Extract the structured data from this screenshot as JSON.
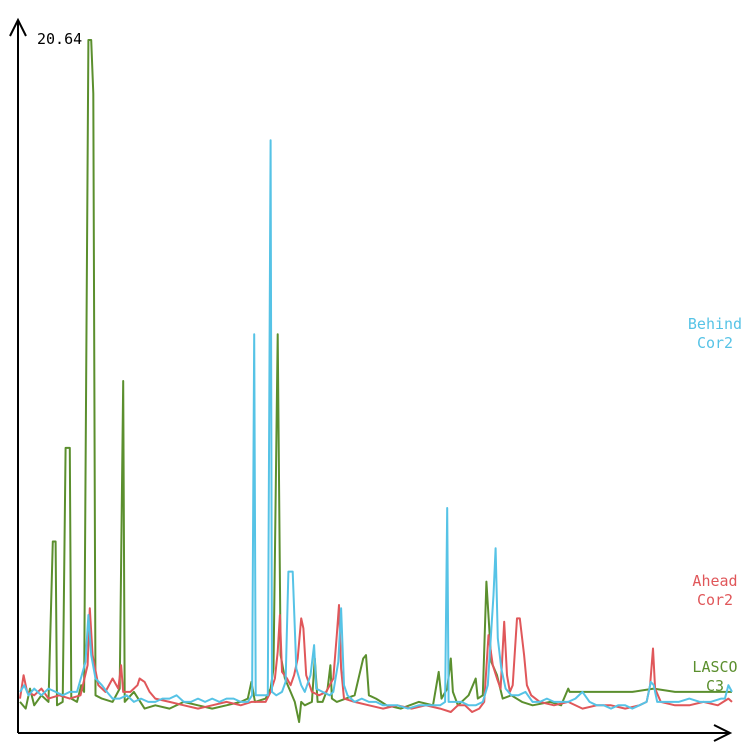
{
  "chart_data": {
    "type": "line",
    "title": "",
    "xlabel": "",
    "ylabel": "",
    "ymax_label": "20.64",
    "ylim": [
      0,
      20.64
    ],
    "xlim": [
      0,
      1000
    ],
    "grid": false,
    "legend": "right, labels next to series",
    "series": [
      {
        "name": "LASCO C3",
        "label_lines": [
          "LASCO",
          "C3"
        ],
        "color": "#5b8f2e",
        "points": [
          [
            0,
            0.6
          ],
          [
            8,
            0.4
          ],
          [
            14,
            1.0
          ],
          [
            20,
            0.5
          ],
          [
            30,
            0.8
          ],
          [
            40,
            0.6
          ],
          [
            46,
            5.4
          ],
          [
            50,
            5.4
          ],
          [
            52,
            0.5
          ],
          [
            60,
            0.6
          ],
          [
            64,
            8.2
          ],
          [
            70,
            8.2
          ],
          [
            72,
            0.7
          ],
          [
            80,
            0.6
          ],
          [
            86,
            1.1
          ],
          [
            90,
            0.9
          ],
          [
            96,
            20.4
          ],
          [
            100,
            20.4
          ],
          [
            103,
            18.8
          ],
          [
            106,
            0.8
          ],
          [
            115,
            0.7
          ],
          [
            130,
            0.6
          ],
          [
            140,
            1.0
          ],
          [
            145,
            10.2
          ],
          [
            147,
            0.6
          ],
          [
            160,
            0.9
          ],
          [
            175,
            0.4
          ],
          [
            190,
            0.5
          ],
          [
            210,
            0.4
          ],
          [
            230,
            0.6
          ],
          [
            250,
            0.5
          ],
          [
            270,
            0.4
          ],
          [
            290,
            0.5
          ],
          [
            310,
            0.6
          ],
          [
            320,
            0.7
          ],
          [
            325,
            1.2
          ],
          [
            330,
            0.6
          ],
          [
            345,
            0.7
          ],
          [
            352,
            1.0
          ],
          [
            356,
            1.6
          ],
          [
            362,
            11.6
          ],
          [
            366,
            2.0
          ],
          [
            372,
            1.3
          ],
          [
            380,
            0.9
          ],
          [
            386,
            0.6
          ],
          [
            392,
            0.0
          ],
          [
            395,
            0.6
          ],
          [
            400,
            0.5
          ],
          [
            410,
            0.6
          ],
          [
            414,
            1.9
          ],
          [
            418,
            0.6
          ],
          [
            425,
            0.6
          ],
          [
            432,
            1.0
          ],
          [
            436,
            1.7
          ],
          [
            438,
            0.7
          ],
          [
            445,
            0.6
          ],
          [
            470,
            0.8
          ],
          [
            482,
            1.9
          ],
          [
            486,
            2.0
          ],
          [
            490,
            0.8
          ],
          [
            500,
            0.7
          ],
          [
            515,
            0.5
          ],
          [
            535,
            0.4
          ],
          [
            560,
            0.6
          ],
          [
            580,
            0.5
          ],
          [
            588,
            1.5
          ],
          [
            592,
            0.7
          ],
          [
            600,
            1.0
          ],
          [
            605,
            1.9
          ],
          [
            608,
            0.9
          ],
          [
            615,
            0.5
          ],
          [
            630,
            0.8
          ],
          [
            640,
            1.3
          ],
          [
            643,
            0.7
          ],
          [
            650,
            0.8
          ],
          [
            655,
            4.2
          ],
          [
            662,
            1.8
          ],
          [
            670,
            1.4
          ],
          [
            678,
            0.7
          ],
          [
            690,
            0.8
          ],
          [
            705,
            0.6
          ],
          [
            720,
            0.5
          ],
          [
            745,
            0.6
          ],
          [
            760,
            0.5
          ],
          [
            770,
            1.0
          ],
          [
            772,
            0.9
          ],
          [
            800,
            0.9
          ],
          [
            830,
            0.9
          ],
          [
            860,
            0.9
          ],
          [
            890,
            1.0
          ],
          [
            920,
            0.9
          ],
          [
            950,
            0.9
          ],
          [
            990,
            0.9
          ],
          [
            1000,
            0.9
          ]
        ]
      },
      {
        "name": "Ahead Cor2",
        "label_lines": [
          "Ahead",
          "Cor2"
        ],
        "color": "#e0575a",
        "points": [
          [
            0,
            0.7
          ],
          [
            5,
            1.4
          ],
          [
            10,
            0.9
          ],
          [
            20,
            0.8
          ],
          [
            30,
            1.0
          ],
          [
            40,
            0.7
          ],
          [
            55,
            0.8
          ],
          [
            70,
            0.7
          ],
          [
            85,
            0.8
          ],
          [
            95,
            1.7
          ],
          [
            98,
            3.4
          ],
          [
            102,
            2.0
          ],
          [
            110,
            1.1
          ],
          [
            120,
            0.9
          ],
          [
            130,
            1.3
          ],
          [
            138,
            1.0
          ],
          [
            142,
            1.7
          ],
          [
            145,
            0.9
          ],
          [
            155,
            0.9
          ],
          [
            165,
            1.1
          ],
          [
            168,
            1.3
          ],
          [
            175,
            1.2
          ],
          [
            182,
            0.9
          ],
          [
            190,
            0.7
          ],
          [
            210,
            0.6
          ],
          [
            230,
            0.5
          ],
          [
            250,
            0.4
          ],
          [
            270,
            0.5
          ],
          [
            290,
            0.6
          ],
          [
            310,
            0.5
          ],
          [
            325,
            0.6
          ],
          [
            335,
            0.6
          ],
          [
            345,
            0.6
          ],
          [
            352,
            0.9
          ],
          [
            358,
            1.3
          ],
          [
            362,
            2.1
          ],
          [
            365,
            3.2
          ],
          [
            368,
            1.5
          ],
          [
            375,
            1.3
          ],
          [
            380,
            1.1
          ],
          [
            385,
            1.4
          ],
          [
            390,
            1.9
          ],
          [
            395,
            3.1
          ],
          [
            398,
            2.8
          ],
          [
            402,
            1.4
          ],
          [
            410,
            0.9
          ],
          [
            420,
            0.8
          ],
          [
            430,
            0.9
          ],
          [
            440,
            1.3
          ],
          [
            445,
            2.6
          ],
          [
            448,
            3.5
          ],
          [
            451,
            1.6
          ],
          [
            455,
            0.7
          ],
          [
            470,
            0.6
          ],
          [
            490,
            0.5
          ],
          [
            510,
            0.4
          ],
          [
            530,
            0.5
          ],
          [
            550,
            0.4
          ],
          [
            570,
            0.5
          ],
          [
            590,
            0.4
          ],
          [
            605,
            0.3
          ],
          [
            615,
            0.5
          ],
          [
            625,
            0.5
          ],
          [
            635,
            0.3
          ],
          [
            645,
            0.4
          ],
          [
            652,
            0.6
          ],
          [
            658,
            2.6
          ],
          [
            664,
            1.7
          ],
          [
            670,
            1.3
          ],
          [
            675,
            1.0
          ],
          [
            680,
            3.0
          ],
          [
            684,
            1.4
          ],
          [
            688,
            0.9
          ],
          [
            692,
            1.1
          ],
          [
            698,
            3.1
          ],
          [
            702,
            3.1
          ],
          [
            708,
            2.0
          ],
          [
            712,
            1.1
          ],
          [
            718,
            0.8
          ],
          [
            730,
            0.6
          ],
          [
            750,
            0.5
          ],
          [
            770,
            0.6
          ],
          [
            790,
            0.4
          ],
          [
            810,
            0.5
          ],
          [
            830,
            0.5
          ],
          [
            850,
            0.4
          ],
          [
            870,
            0.5
          ],
          [
            880,
            0.6
          ],
          [
            885,
            1.1
          ],
          [
            889,
            2.2
          ],
          [
            892,
            1.0
          ],
          [
            900,
            0.6
          ],
          [
            920,
            0.5
          ],
          [
            940,
            0.5
          ],
          [
            960,
            0.6
          ],
          [
            980,
            0.5
          ],
          [
            995,
            0.7
          ],
          [
            1000,
            0.6
          ]
        ]
      },
      {
        "name": "Behind Cor2",
        "label_lines": [
          "Behind",
          "Cor2"
        ],
        "color": "#56c3e6",
        "points": [
          [
            0,
            0.9
          ],
          [
            6,
            1.1
          ],
          [
            12,
            0.8
          ],
          [
            20,
            1.0
          ],
          [
            30,
            0.8
          ],
          [
            40,
            1.0
          ],
          [
            50,
            0.9
          ],
          [
            60,
            0.8
          ],
          [
            70,
            0.9
          ],
          [
            80,
            0.9
          ],
          [
            88,
            1.5
          ],
          [
            92,
            1.8
          ],
          [
            96,
            3.2
          ],
          [
            100,
            2.0
          ],
          [
            106,
            1.3
          ],
          [
            115,
            1.1
          ],
          [
            122,
            0.9
          ],
          [
            130,
            0.7
          ],
          [
            140,
            0.7
          ],
          [
            150,
            0.8
          ],
          [
            160,
            0.6
          ],
          [
            170,
            0.7
          ],
          [
            180,
            0.6
          ],
          [
            190,
            0.6
          ],
          [
            200,
            0.7
          ],
          [
            210,
            0.7
          ],
          [
            220,
            0.8
          ],
          [
            230,
            0.6
          ],
          [
            240,
            0.6
          ],
          [
            250,
            0.7
          ],
          [
            260,
            0.6
          ],
          [
            270,
            0.7
          ],
          [
            280,
            0.6
          ],
          [
            290,
            0.7
          ],
          [
            300,
            0.7
          ],
          [
            310,
            0.6
          ],
          [
            320,
            0.6
          ],
          [
            326,
            0.8
          ],
          [
            329,
            11.6
          ],
          [
            331,
            0.8
          ],
          [
            340,
            0.8
          ],
          [
            348,
            0.8
          ],
          [
            352,
            17.4
          ],
          [
            354,
            0.9
          ],
          [
            360,
            0.8
          ],
          [
            368,
            0.9
          ],
          [
            373,
            1.2
          ],
          [
            377,
            4.5
          ],
          [
            383,
            4.5
          ],
          [
            388,
            1.6
          ],
          [
            395,
            1.1
          ],
          [
            400,
            0.9
          ],
          [
            408,
            1.4
          ],
          [
            413,
            2.3
          ],
          [
            416,
            1.0
          ],
          [
            425,
            0.9
          ],
          [
            435,
            0.8
          ],
          [
            440,
            0.9
          ],
          [
            447,
            1.8
          ],
          [
            451,
            3.4
          ],
          [
            455,
            1.1
          ],
          [
            460,
            0.8
          ],
          [
            470,
            0.6
          ],
          [
            480,
            0.7
          ],
          [
            490,
            0.6
          ],
          [
            500,
            0.6
          ],
          [
            510,
            0.5
          ],
          [
            520,
            0.5
          ],
          [
            530,
            0.5
          ],
          [
            545,
            0.4
          ],
          [
            560,
            0.5
          ],
          [
            575,
            0.5
          ],
          [
            590,
            0.5
          ],
          [
            597,
            0.6
          ],
          [
            600,
            6.4
          ],
          [
            602,
            0.6
          ],
          [
            610,
            0.6
          ],
          [
            620,
            0.6
          ],
          [
            630,
            0.5
          ],
          [
            640,
            0.5
          ],
          [
            650,
            0.6
          ],
          [
            657,
            1.1
          ],
          [
            665,
            3.8
          ],
          [
            668,
            5.2
          ],
          [
            671,
            2.5
          ],
          [
            676,
            1.6
          ],
          [
            682,
            1.0
          ],
          [
            690,
            0.8
          ],
          [
            700,
            0.8
          ],
          [
            710,
            0.9
          ],
          [
            720,
            0.6
          ],
          [
            730,
            0.6
          ],
          [
            740,
            0.7
          ],
          [
            750,
            0.6
          ],
          [
            760,
            0.6
          ],
          [
            770,
            0.6
          ],
          [
            780,
            0.7
          ],
          [
            790,
            0.9
          ],
          [
            800,
            0.6
          ],
          [
            810,
            0.5
          ],
          [
            820,
            0.5
          ],
          [
            830,
            0.4
          ],
          [
            840,
            0.5
          ],
          [
            850,
            0.5
          ],
          [
            860,
            0.4
          ],
          [
            870,
            0.5
          ],
          [
            880,
            0.6
          ],
          [
            886,
            1.2
          ],
          [
            890,
            1.1
          ],
          [
            895,
            0.6
          ],
          [
            910,
            0.6
          ],
          [
            925,
            0.6
          ],
          [
            940,
            0.7
          ],
          [
            955,
            0.6
          ],
          [
            970,
            0.6
          ],
          [
            985,
            0.7
          ],
          [
            990,
            0.7
          ],
          [
            995,
            1.1
          ],
          [
            1000,
            0.9
          ]
        ]
      }
    ]
  }
}
